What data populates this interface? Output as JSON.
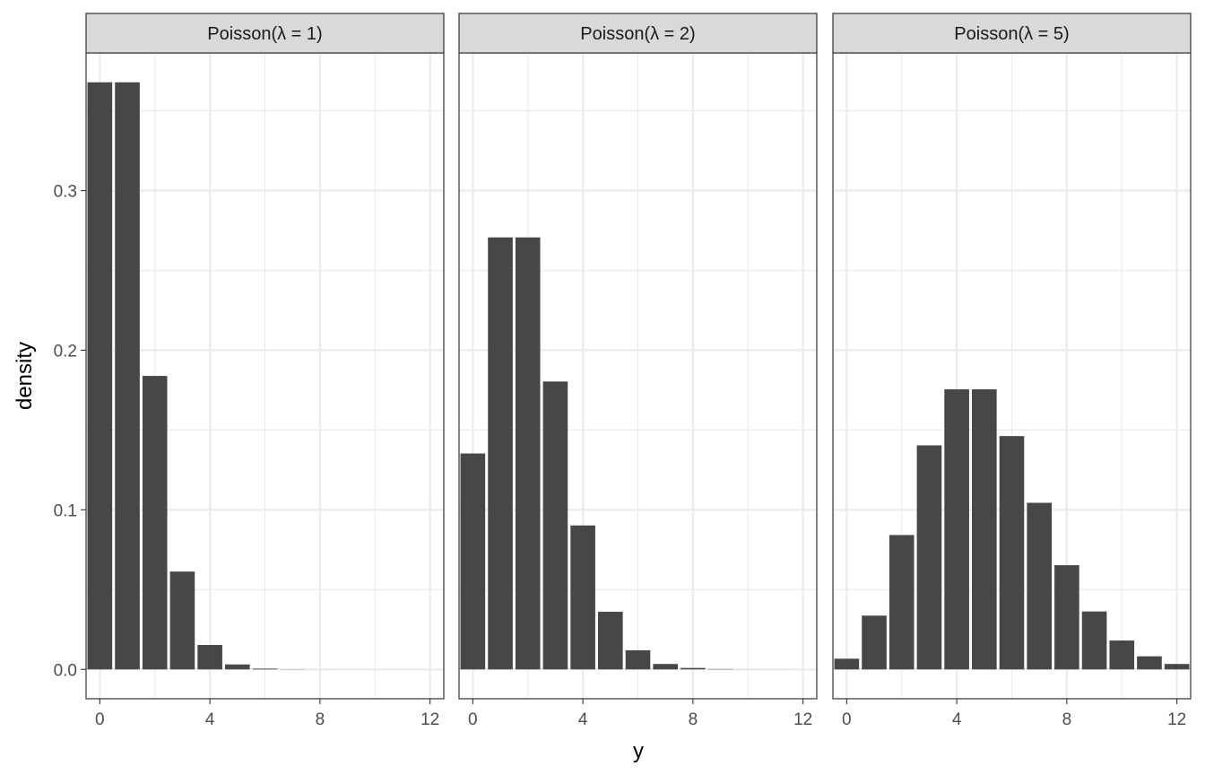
{
  "chart_data": {
    "type": "bar",
    "xlabel": "y",
    "ylabel": "density",
    "xlim": [
      -0.5,
      12.5
    ],
    "ylim": [
      -0.0184,
      0.3863
    ],
    "x_ticks": [
      0,
      4,
      8,
      12
    ],
    "y_ticks": [
      0.0,
      0.1,
      0.2,
      0.3
    ],
    "y_tick_labels": [
      "0.0",
      "0.1",
      "0.2",
      "0.3"
    ],
    "grid": true,
    "x": [
      0,
      1,
      2,
      3,
      4,
      5,
      6,
      7,
      8,
      9,
      10,
      11,
      12
    ],
    "panels": [
      {
        "title": "Poisson(λ = 1)",
        "values": [
          0.3679,
          0.3679,
          0.1839,
          0.0613,
          0.0153,
          0.0031,
          0.0005,
          0.0001,
          1e-05,
          0.0,
          0.0,
          0.0,
          0.0
        ]
      },
      {
        "title": "Poisson(λ = 2)",
        "values": [
          0.1353,
          0.2707,
          0.2707,
          0.1804,
          0.0902,
          0.0361,
          0.012,
          0.0034,
          0.0009,
          0.0002,
          4e-05,
          1e-05,
          0.0
        ]
      },
      {
        "title": "Poisson(λ = 5)",
        "values": [
          0.0067,
          0.0337,
          0.0842,
          0.1404,
          0.1755,
          0.1755,
          0.1462,
          0.1044,
          0.0653,
          0.0363,
          0.0181,
          0.0082,
          0.0034
        ]
      }
    ]
  }
}
